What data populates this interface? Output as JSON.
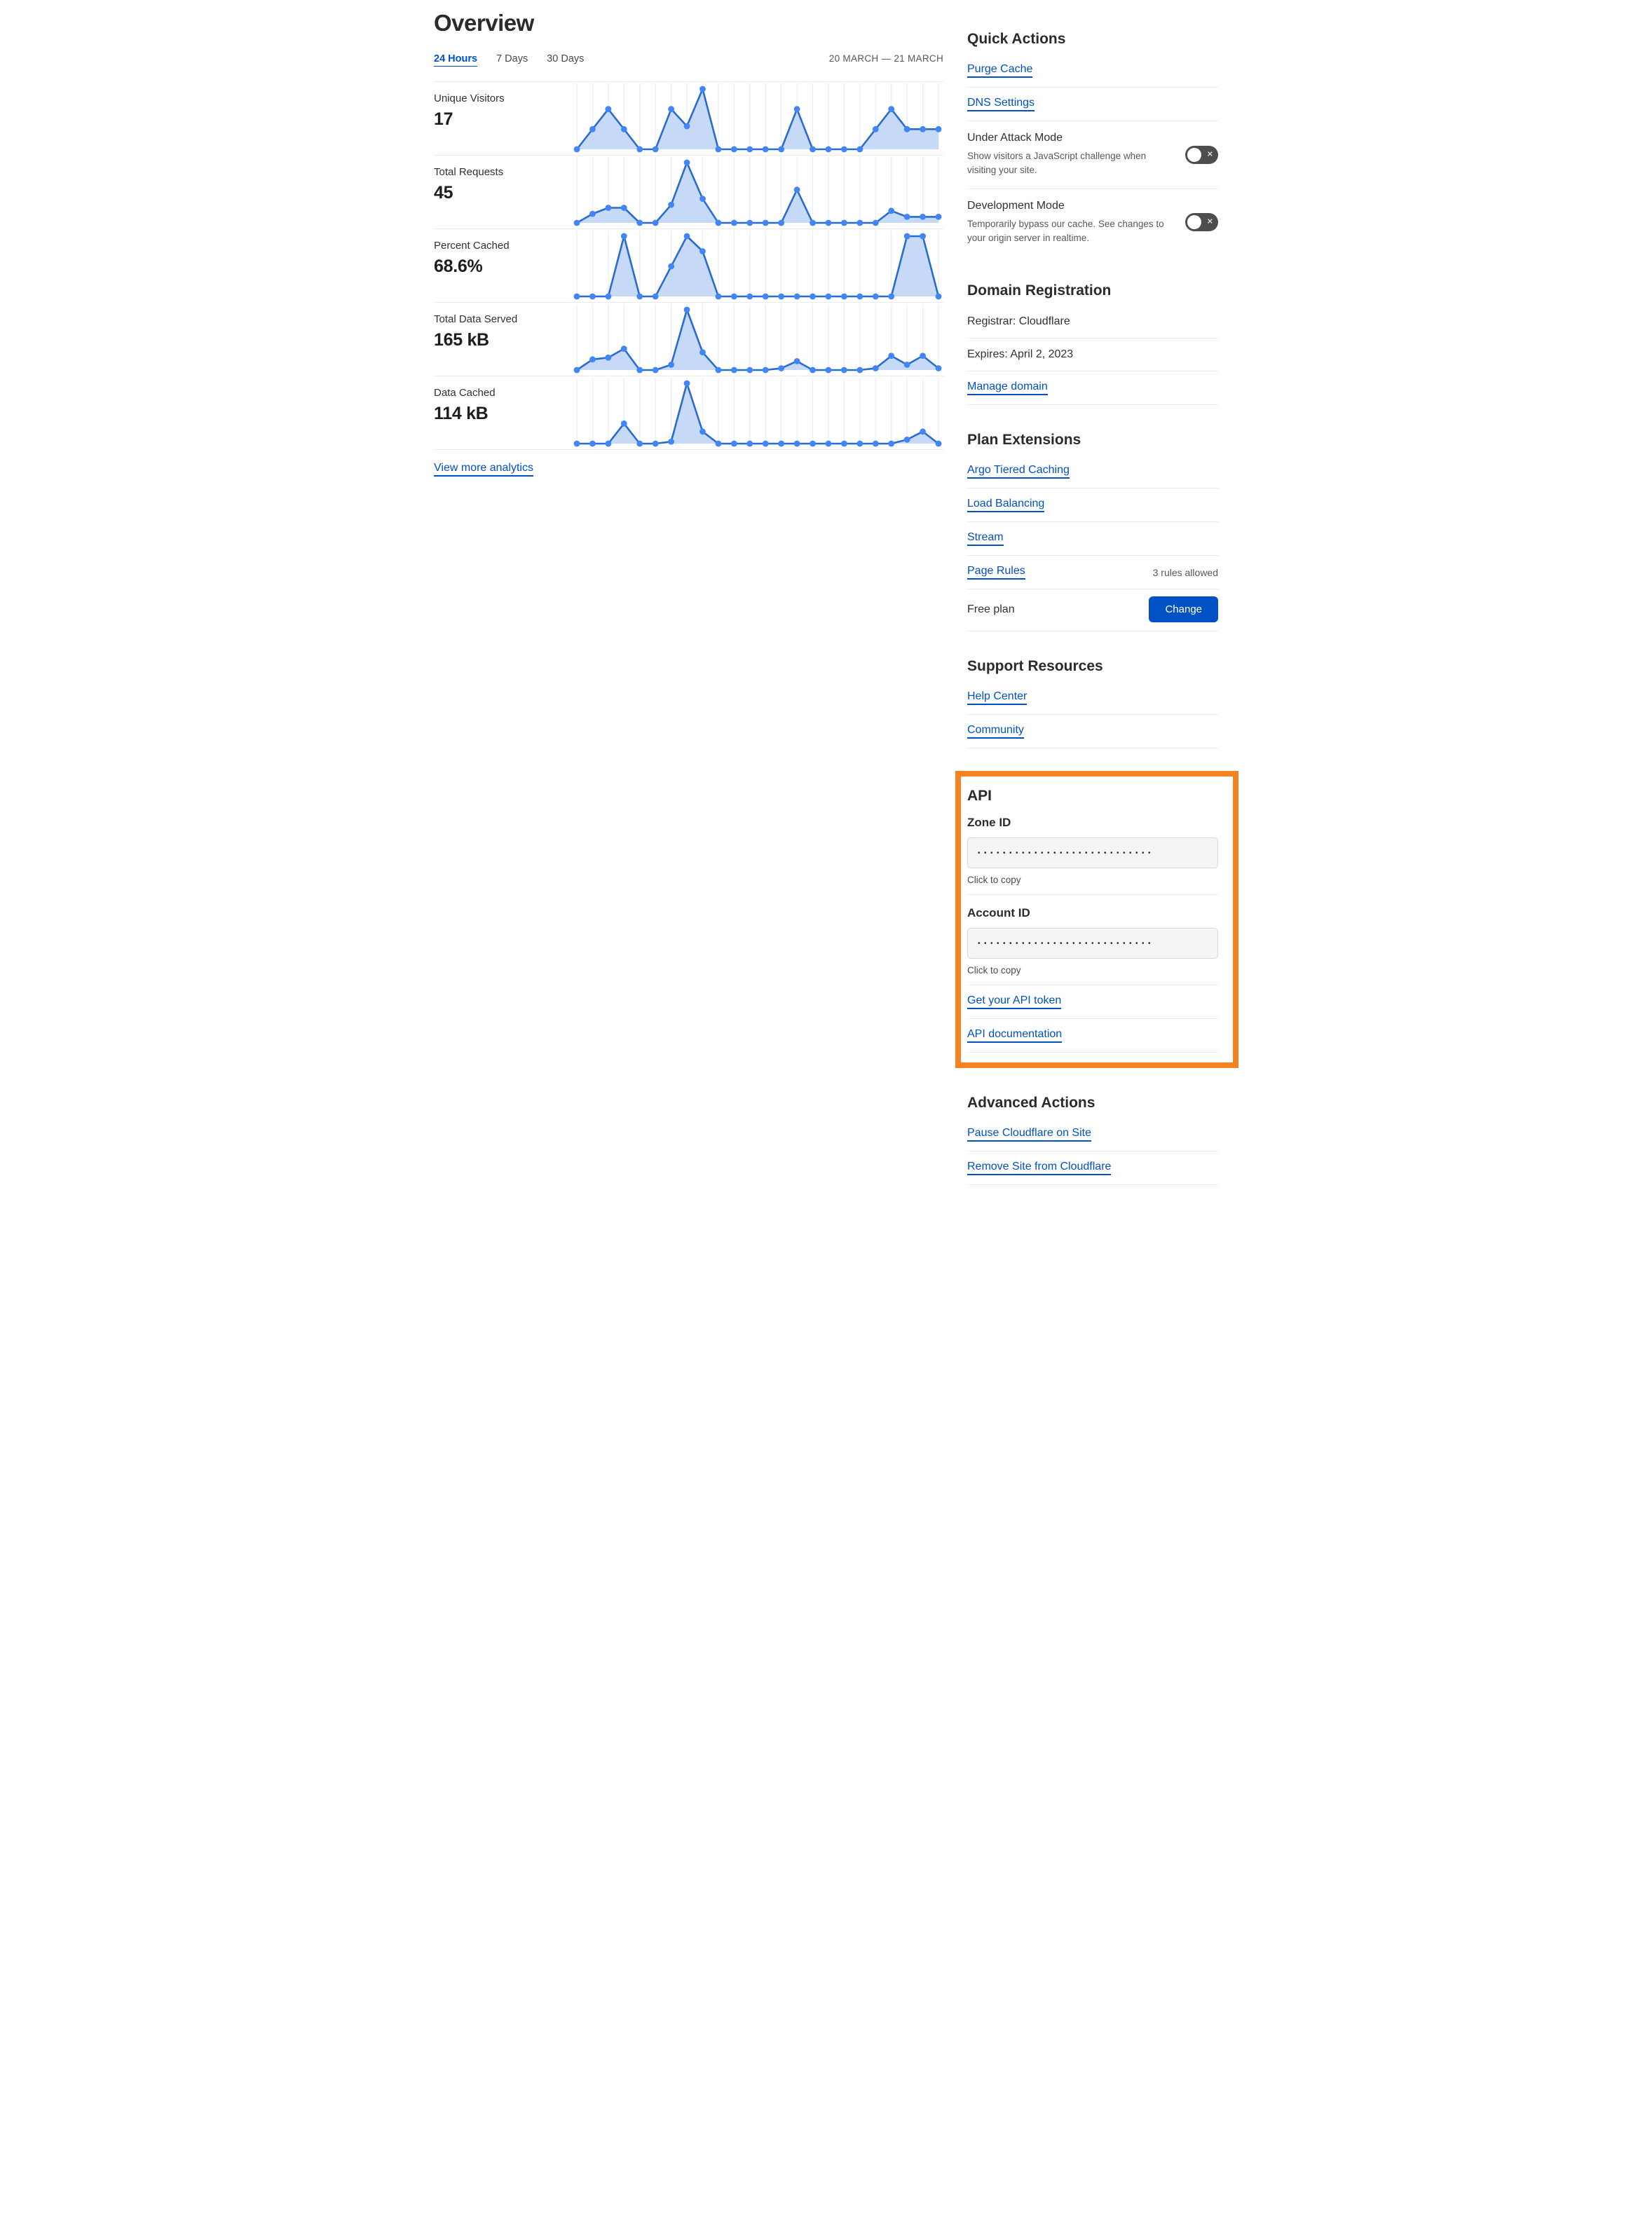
{
  "colors": {
    "accent_blue": "#0051c3",
    "highlight_orange": "#f6821f",
    "chart_line": "#2a6bcf",
    "chart_dot": "#4285f4",
    "chart_fill": "#c6daf7",
    "chart_grid": "#e8eefb",
    "toggle_off_bg": "#4e4e4e"
  },
  "header": {
    "title": "Overview",
    "tabs": [
      {
        "label": "24 Hours",
        "active": true
      },
      {
        "label": "7 Days",
        "active": false
      },
      {
        "label": "30 Days",
        "active": false
      }
    ],
    "date_range": "20 MARCH — 21 MARCH"
  },
  "metrics": [
    {
      "label": "Unique Visitors",
      "value": "17"
    },
    {
      "label": "Total Requests",
      "value": "45"
    },
    {
      "label": "Percent Cached",
      "value": "68.6%"
    },
    {
      "label": "Total Data Served",
      "value": "165 kB"
    },
    {
      "label": "Data Cached",
      "value": "114 kB"
    }
  ],
  "view_more_label": "View more analytics",
  "chart_data": [
    {
      "type": "area",
      "title": "Unique Visitors",
      "display_value": "17",
      "values": [
        0,
        2,
        4,
        2,
        0,
        0,
        4,
        2.3,
        6,
        0,
        0,
        0,
        0,
        0,
        4,
        0,
        0,
        0,
        0,
        2,
        4,
        2,
        2,
        2
      ],
      "ylim": [
        0,
        6
      ],
      "grid": "vertical",
      "legend": "none"
    },
    {
      "type": "area",
      "title": "Total Requests",
      "display_value": "45",
      "values": [
        0,
        1.5,
        2.5,
        2.5,
        0,
        0,
        3,
        10,
        4,
        0,
        0,
        0,
        0,
        0,
        5.5,
        0,
        0,
        0,
        0,
        0,
        2,
        1,
        1,
        1
      ],
      "ylim": [
        0,
        10
      ],
      "grid": "vertical",
      "legend": "none"
    },
    {
      "type": "area",
      "title": "Percent Cached",
      "display_value": "68.6%",
      "values": [
        0,
        0,
        0,
        100,
        0,
        0,
        50,
        100,
        75,
        0,
        0,
        0,
        0,
        0,
        0,
        0,
        0,
        0,
        0,
        0,
        0,
        100,
        100,
        0
      ],
      "ylim": [
        0,
        100
      ],
      "grid": "vertical",
      "legend": "none"
    },
    {
      "type": "area",
      "title": "Total Data Served",
      "display_value": "165 kB",
      "values": [
        0,
        3,
        3.5,
        6,
        0,
        0,
        1.5,
        17,
        5,
        0,
        0,
        0,
        0,
        0.5,
        2.5,
        0,
        0,
        0,
        0,
        0.5,
        4,
        1.5,
        4,
        0.5
      ],
      "ylim": [
        0,
        17
      ],
      "grid": "vertical",
      "legend": "none"
    },
    {
      "type": "area",
      "title": "Data Cached",
      "display_value": "114 kB",
      "values": [
        0,
        0,
        0,
        5,
        0,
        0,
        0.5,
        15,
        3,
        0,
        0,
        0,
        0,
        0,
        0,
        0,
        0,
        0,
        0,
        0,
        0,
        1,
        3,
        0
      ],
      "ylim": [
        0,
        15
      ],
      "grid": "vertical",
      "legend": "none"
    }
  ],
  "quick_actions": {
    "heading": "Quick Actions",
    "links": [
      {
        "label": "Purge Cache"
      },
      {
        "label": "DNS Settings"
      }
    ],
    "toggles": [
      {
        "label": "Under Attack Mode",
        "description": "Show visitors a JavaScript challenge when visiting your site.",
        "state": "off"
      },
      {
        "label": "Development Mode",
        "description": "Temporarily bypass our cache. See changes to your origin server in realtime.",
        "state": "off"
      }
    ]
  },
  "domain_registration": {
    "heading": "Domain Registration",
    "registrar": "Registrar: Cloudflare",
    "expires": "Expires: April 2, 2023",
    "manage_label": "Manage domain"
  },
  "plan_extensions": {
    "heading": "Plan Extensions",
    "links": [
      {
        "label": "Argo Tiered Caching",
        "meta": ""
      },
      {
        "label": "Load Balancing",
        "meta": ""
      },
      {
        "label": "Stream",
        "meta": ""
      },
      {
        "label": "Page Rules",
        "meta": "3 rules allowed"
      }
    ],
    "plan_label": "Free plan",
    "change_label": "Change"
  },
  "support_resources": {
    "heading": "Support Resources",
    "links": [
      {
        "label": "Help Center"
      },
      {
        "label": "Community"
      }
    ]
  },
  "api": {
    "heading": "API",
    "fields": [
      {
        "label": "Zone ID",
        "masked_value": "••••••••••••••••••••••••••••",
        "hint": "Click to copy"
      },
      {
        "label": "Account ID",
        "masked_value": "••••••••••••••••••••••••••••",
        "hint": "Click to copy"
      }
    ],
    "links": [
      {
        "label": "Get your API token"
      },
      {
        "label": "API documentation"
      }
    ]
  },
  "advanced_actions": {
    "heading": "Advanced Actions",
    "links": [
      {
        "label": "Pause Cloudflare on Site"
      },
      {
        "label": "Remove Site from Cloudflare"
      }
    ]
  }
}
